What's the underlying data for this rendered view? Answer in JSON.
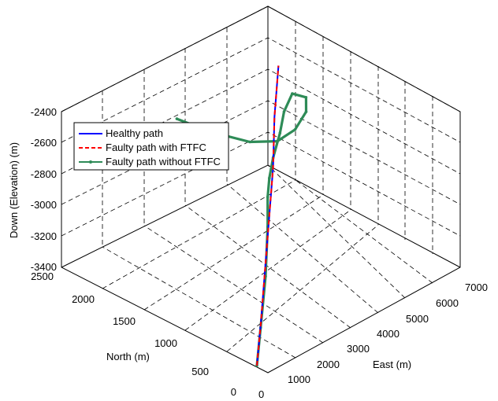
{
  "chart_data": {
    "type": "line",
    "projection": "3d",
    "xlabel": "East (m)",
    "ylabel": "North (m)",
    "zlabel": "Down (Elevation) (m)",
    "x_ticks": [
      "0",
      "1000",
      "2000",
      "3000",
      "4000",
      "5000",
      "6000",
      "7000"
    ],
    "y_ticks": [
      "0",
      "500",
      "1000",
      "1500",
      "2000",
      "2500"
    ],
    "z_ticks": [
      "-2400",
      "-2600",
      "-2800",
      "-3000",
      "-3200",
      "-3400"
    ],
    "xlim": [
      0,
      7000
    ],
    "ylim": [
      0,
      2500
    ],
    "zlim": [
      -3400,
      -2400
    ],
    "grid": true,
    "legend_position": "top-left",
    "legend": [
      "Healthy path",
      "Faulty path with FTFC",
      "Faulty path without FTFC"
    ],
    "series": [
      {
        "name": "Healthy path",
        "color": "#0000ff",
        "style": "solid",
        "points": [
          [
            50,
            150,
            -3400
          ],
          [
            1100,
            450,
            -3300
          ],
          [
            2300,
            800,
            -3180
          ],
          [
            3500,
            1150,
            -3060
          ],
          [
            4700,
            1500,
            -2940
          ],
          [
            5800,
            1850,
            -2820
          ],
          [
            7000,
            2200,
            -2700
          ]
        ]
      },
      {
        "name": "Faulty path with FTFC",
        "color": "#ff0000",
        "style": "dashed",
        "points": [
          [
            50,
            150,
            -3400
          ],
          [
            1100,
            450,
            -3300
          ],
          [
            2300,
            800,
            -3180
          ],
          [
            3500,
            1150,
            -3060
          ],
          [
            4700,
            1500,
            -2940
          ],
          [
            5800,
            1850,
            -2820
          ],
          [
            7000,
            2200,
            -2700
          ]
        ]
      },
      {
        "name": "Faulty path without FTFC",
        "color": "#2e8b57",
        "style": "solid-marker",
        "points": [
          [
            50,
            150,
            -3400
          ],
          [
            1000,
            420,
            -3320
          ],
          [
            2200,
            760,
            -3200
          ],
          [
            3300,
            1100,
            -3080
          ],
          [
            3900,
            1300,
            -3000
          ],
          [
            4200,
            1380,
            -2930
          ],
          [
            4700,
            1500,
            -2880
          ],
          [
            5400,
            1650,
            -2830
          ],
          [
            6000,
            1800,
            -2790
          ],
          [
            6600,
            1900,
            -2760
          ],
          [
            6500,
            1700,
            -2720
          ],
          [
            5900,
            1500,
            -2700
          ],
          [
            5200,
            1400,
            -2720
          ],
          [
            4700,
            1450,
            -2760
          ],
          [
            4300,
            1650,
            -2780
          ],
          [
            3900,
            2000,
            -2770
          ],
          [
            3600,
            2300,
            -2740
          ]
        ]
      }
    ]
  }
}
